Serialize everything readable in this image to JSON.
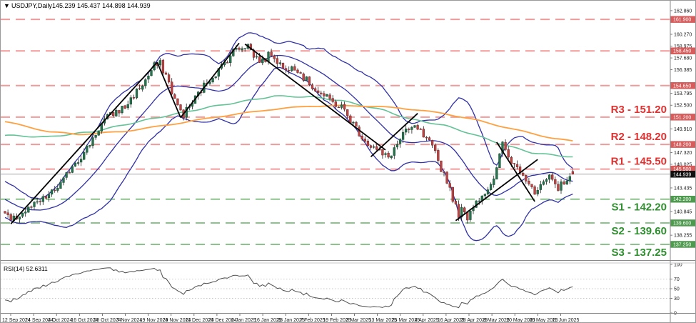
{
  "window": {
    "title": {
      "dropdown_glyph": "▼",
      "symbol": "USDJPY,Daily",
      "quotes": "145.239 145.437 144.898 144.939"
    }
  },
  "quote": {
    "open": "145.239",
    "high": "145.437",
    "low": "144.898",
    "close": "144.939"
  },
  "colors": {
    "bull_body": "#26734d",
    "bull_border": "#16472f",
    "bear_body": "#bf4545",
    "bear_border": "#6e2323",
    "wick": "#222222",
    "bollinger": "#3030a8",
    "ma_fast_green": "#63c296",
    "ma_slow_orange": "#ffa040",
    "resistance_line": "#f09a9a",
    "support_line": "#8cc28c",
    "resistance_text": "#e03030",
    "support_text": "#2f8f2f",
    "badge_resistance": "#d75c5c",
    "badge_support": "#4e9a4e",
    "badge_current": "#111111",
    "trendline": "#000000",
    "current_price_line": "#888888",
    "rsi_line": "#4d4d4d",
    "rsi_level_dotted": "#b5b5b5",
    "panel_border": "#8a8a8a"
  },
  "levels": {
    "resistance_unlabeled": [
      161.9,
      158.45,
      154.65
    ],
    "labeled": [
      {
        "label": "R3 - 151.20",
        "price": 151.2,
        "type": "r"
      },
      {
        "label": "R2 - 148.20",
        "price": 148.2,
        "type": "r"
      },
      {
        "label": "R1 - 145.50",
        "price": 145.5,
        "type": "r"
      },
      {
        "label": "S1 - 142.20",
        "price": 142.2,
        "type": "s"
      },
      {
        "label": "S2 - 139.60",
        "price": 139.6,
        "type": "s"
      },
      {
        "label": "S3 - 137.25",
        "price": 137.25,
        "type": "s"
      }
    ],
    "current_price": 144.939
  },
  "axis": {
    "plain_top": 162.86,
    "plain_step": 1.295,
    "plain_count": 22,
    "badges": [
      {
        "value": "161.900",
        "price": 161.9,
        "type": "resistance"
      },
      {
        "value": "158.450",
        "price": 158.45,
        "type": "resistance"
      },
      {
        "value": "154.650",
        "price": 154.65,
        "type": "resistance"
      },
      {
        "value": "151.200",
        "price": 151.2,
        "type": "resistance"
      },
      {
        "value": "148.200",
        "price": 148.2,
        "type": "resistance"
      },
      {
        "value": "145.500",
        "price": 145.5,
        "type": "resistance"
      },
      {
        "value": "144.939",
        "price": 144.939,
        "type": "current"
      },
      {
        "value": "142.200",
        "price": 142.2,
        "type": "support"
      },
      {
        "value": "139.600",
        "price": 139.6,
        "type": "support"
      },
      {
        "value": "137.250",
        "price": 137.25,
        "type": "support"
      }
    ],
    "rsi_ticks": [
      "100",
      "70",
      "50",
      "30",
      "0"
    ]
  },
  "time_axis": [
    "12 Sep 2024",
    "24 Sep 2024",
    "4 Oct 2024",
    "16 Oct 2024",
    "28 Oct 2024",
    "7 Nov 2024",
    "19 Nov 2024",
    "29 Nov 2024",
    "11 Dec 2024",
    "23 Dec 2024",
    "6 Jan 2025",
    "16 Jan 2025",
    "28 Jan 2025",
    "7 Feb 2025",
    "19 Feb 2025",
    "3 Mar 2025",
    "13 Mar 2025",
    "25 Mar 2025",
    "4 Apr 2025",
    "16 Apr 2025",
    "28 Apr 2025",
    "8 May 2025",
    "20 May 2025",
    "30 May 2025",
    "11 Jun 2025"
  ],
  "rsi": {
    "label": "RSI(14) 52.6311",
    "period": 14,
    "value": 52.6311,
    "levels": [
      70,
      50,
      30
    ]
  },
  "chart_data": {
    "type": "candlestick",
    "symbol": "USDJPY",
    "timeframe": "Daily",
    "title": "USDJPY Daily with Bollinger Bands, SMA(fast/slow), pivot R/S levels and RSI(14)",
    "x_range": [
      "12 Sep 2024",
      "11 Jun 2025"
    ],
    "y_range_price": [
      135.53,
      163.95
    ],
    "y_range_rsi": [
      0,
      100
    ],
    "bars_visible": 195,
    "last_quote": {
      "open": 145.239,
      "high": 145.437,
      "low": 144.898,
      "close": 144.939
    },
    "close_anchors": [
      [
        0,
        140.6
      ],
      [
        2,
        139.7
      ],
      [
        5,
        140.5
      ],
      [
        8,
        141.1
      ],
      [
        12,
        141.9
      ],
      [
        16,
        142.9
      ],
      [
        20,
        144.2
      ],
      [
        23,
        146.0
      ],
      [
        27,
        147.2
      ],
      [
        30,
        148.9
      ],
      [
        34,
        150.9
      ],
      [
        38,
        151.8
      ],
      [
        41,
        152.3
      ],
      [
        44,
        153.6
      ],
      [
        48,
        155.2
      ],
      [
        51,
        156.8
      ],
      [
        53,
        157.0
      ],
      [
        55,
        155.8
      ],
      [
        57,
        154.0
      ],
      [
        59,
        152.3
      ],
      [
        61,
        151.5
      ],
      [
        64,
        152.8
      ],
      [
        67,
        154.2
      ],
      [
        70,
        155.4
      ],
      [
        73,
        156.3
      ],
      [
        76,
        157.6
      ],
      [
        79,
        158.8
      ],
      [
        83,
        159.1
      ],
      [
        85,
        157.9
      ],
      [
        88,
        157.3
      ],
      [
        91,
        158.2
      ],
      [
        94,
        157.0
      ],
      [
        96,
        156.2
      ],
      [
        98,
        157.1
      ],
      [
        100,
        156.4
      ],
      [
        103,
        155.2
      ],
      [
        106,
        154.3
      ],
      [
        109,
        153.5
      ],
      [
        112,
        152.8
      ],
      [
        115,
        152.3
      ],
      [
        118,
        150.9
      ],
      [
        121,
        149.5
      ],
      [
        124,
        148.3
      ],
      [
        127,
        147.6
      ],
      [
        129,
        147.0
      ],
      [
        131,
        146.8
      ],
      [
        134,
        148.2
      ],
      [
        136,
        149.3
      ],
      [
        139,
        149.9
      ],
      [
        141,
        150.0
      ],
      [
        143,
        149.0
      ],
      [
        145,
        148.3
      ],
      [
        147,
        147.2
      ],
      [
        149,
        145.6
      ],
      [
        151,
        144.3
      ],
      [
        152,
        143.4
      ],
      [
        154,
        141.3
      ],
      [
        155,
        140.6
      ],
      [
        156,
        141.0
      ],
      [
        157,
        140.5
      ],
      [
        158,
        140.3
      ],
      [
        160,
        141.6
      ],
      [
        162,
        142.4
      ],
      [
        164,
        143.0
      ],
      [
        166,
        143.6
      ],
      [
        167,
        144.2
      ],
      [
        168,
        145.3
      ],
      [
        169,
        147.3
      ],
      [
        170,
        148.2
      ],
      [
        171,
        147.6
      ],
      [
        172,
        146.8
      ],
      [
        174,
        146.0
      ],
      [
        176,
        145.4
      ],
      [
        178,
        144.6
      ],
      [
        180,
        143.7
      ],
      [
        181,
        142.9
      ],
      [
        183,
        143.4
      ],
      [
        184,
        144.1
      ],
      [
        186,
        144.5
      ],
      [
        188,
        143.5
      ],
      [
        189,
        143.1
      ],
      [
        190,
        143.9
      ],
      [
        192,
        144.5
      ],
      [
        194,
        144.939
      ]
    ],
    "lead_in_anchors": [
      [
        -110,
        159.5
      ],
      [
        -95,
        161.2
      ],
      [
        -80,
        155.5
      ],
      [
        -65,
        146.5
      ],
      [
        -55,
        144.0
      ],
      [
        -45,
        147.5
      ],
      [
        -35,
        149.0
      ],
      [
        -25,
        145.5
      ],
      [
        -15,
        143.0
      ],
      [
        -8,
        142.0
      ],
      [
        -1,
        140.8
      ]
    ],
    "ma_fast_anchors": [
      [
        0,
        149.2
      ],
      [
        14,
        149.0
      ],
      [
        30,
        149.6
      ],
      [
        50,
        151.0
      ],
      [
        70,
        152.3
      ],
      [
        92,
        153.5
      ],
      [
        105,
        153.4
      ],
      [
        115,
        153.0
      ],
      [
        123,
        152.4
      ],
      [
        130,
        151.9
      ],
      [
        138,
        151.0
      ],
      [
        150,
        150.3
      ],
      [
        160,
        149.3
      ],
      [
        170,
        148.2
      ],
      [
        180,
        147.3
      ],
      [
        188,
        147.0
      ],
      [
        194,
        146.85
      ]
    ],
    "ma_slow_anchors": [
      [
        0,
        150.7
      ],
      [
        15,
        149.6
      ],
      [
        25,
        149.3
      ],
      [
        40,
        149.6
      ],
      [
        55,
        150.3
      ],
      [
        72,
        151.2
      ],
      [
        90,
        152.0
      ],
      [
        104,
        152.4
      ],
      [
        120,
        152.45
      ],
      [
        135,
        152.2
      ],
      [
        150,
        151.6
      ],
      [
        162,
        150.8
      ],
      [
        172,
        150.0
      ],
      [
        180,
        149.4
      ],
      [
        187,
        148.9
      ],
      [
        194,
        148.55
      ]
    ],
    "indicators": {
      "bollinger_period": 20,
      "bollinger_dev": 2,
      "rsi_period": 14
    },
    "trendlines": [
      [
        [
          2,
          139.5
        ],
        [
          52,
          157.2
        ]
      ],
      [
        [
          52,
          157.2
        ],
        [
          60,
          151.15
        ]
      ],
      [
        [
          60,
          151.15
        ],
        [
          80,
          159.3
        ]
      ],
      [
        [
          82,
          159.2
        ],
        [
          130,
          147.6
        ]
      ],
      [
        [
          125,
          146.85
        ],
        [
          141,
          151.6
        ]
      ],
      [
        [
          154,
          139.85
        ],
        [
          182,
          146.55
        ]
      ],
      [
        [
          168,
          148.45
        ],
        [
          181,
          141.95
        ]
      ]
    ]
  }
}
